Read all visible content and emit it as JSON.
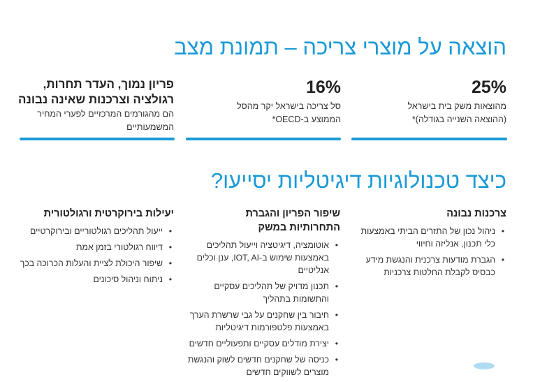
{
  "section1": {
    "title": "הוצאה על מוצרי צריכה – תמונת מצב",
    "stats": [
      {
        "value": "25%",
        "lines": [
          "מהוצאות משק בית בישראל",
          "(ההוצאה השנייה בגודלה)*"
        ]
      },
      {
        "value": "16%",
        "lines": [
          "סל צריכה בישראל יקר מהסל",
          "הממוצע ב-OECD*"
        ]
      },
      {
        "headline_lines": [
          "פריון נמוך, העדר תחרות,",
          "רגולציה וצרכנות שאינה נבונה"
        ],
        "lines": [
          "הם מהגורמים המרכזיים לפערי המחיר",
          "המשמעותיים"
        ]
      }
    ]
  },
  "section2": {
    "title": "כיצד טכנולוגיות דיגיטליות יסייעו?",
    "columns": [
      {
        "heading_lines": [
          "צרכנות נבונה"
        ],
        "items": [
          [
            "ניהול נכון של התזרים הביתי באמצעות",
            "כלי תכנון, אנליזה וחיווי"
          ],
          [
            "הגברת מודעות צרכנית והנגשת מידע",
            "כבסיס לקבלת החלטות צרכניות"
          ]
        ]
      },
      {
        "heading_lines": [
          "שיפור הפריון והגברת",
          "התחרותיות במשק"
        ],
        "items": [
          [
            "אוטומציה, דיגיטציה וייעול תהליכים",
            "באמצעות שימוש ב-IOT, AI, ענן וכלים",
            "אנליטיים"
          ],
          [
            "תכנון מדויק של תהליכים עסקיים",
            "והתשומות בתהליך"
          ],
          [
            "חיבור בין שחקנים על גבי שרשרת הערך",
            "באמצעות פלטפורמות דיגיטליות"
          ],
          [
            "יצירת מודלים עסקיים ותפעוליים חדשים"
          ],
          [
            "כניסה של שחקנים חדשים לשוק והנגשת",
            "מוצרים לשווקים חדשים"
          ]
        ]
      },
      {
        "heading_lines": [
          "יעילות בירוקרטית ורגולטורית"
        ],
        "items": [
          [
            "ייעול תהליכים רגולטוריים ובירוקרטיים"
          ],
          [
            "דיווח רגולטורי בזמן אמת"
          ],
          [
            "שיפור היכולת לציית והעלות הכרוכה בכך"
          ],
          [
            "ניתוח וניהול סיכונים"
          ]
        ]
      }
    ]
  },
  "colors": {
    "accent": "#1a9ad7",
    "text": "#222222"
  }
}
